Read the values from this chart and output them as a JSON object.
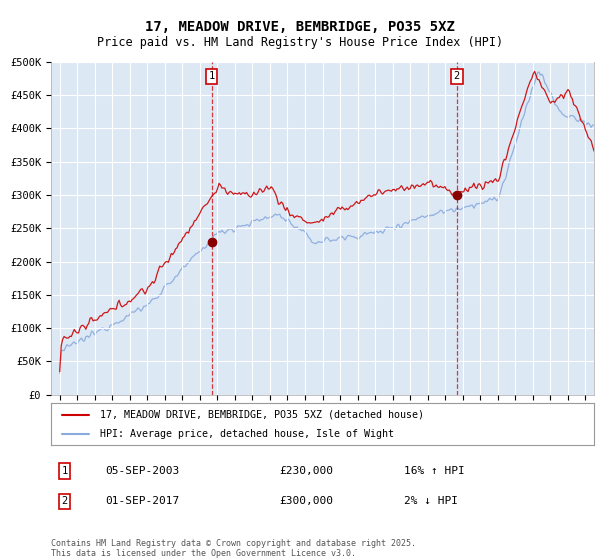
{
  "title": "17, MEADOW DRIVE, BEMBRIDGE, PO35 5XZ",
  "subtitle": "Price paid vs. HM Land Registry's House Price Index (HPI)",
  "ylabel_ticks": [
    "£0",
    "£50K",
    "£100K",
    "£150K",
    "£200K",
    "£250K",
    "£300K",
    "£350K",
    "£400K",
    "£450K",
    "£500K"
  ],
  "ylim": [
    0,
    500000
  ],
  "xlim_start": 1994.5,
  "xlim_end": 2025.5,
  "background_color": "#dde8f5",
  "fig_bg_color": "#ffffff",
  "grid_color": "#ffffff",
  "red_line_color": "#cc0000",
  "blue_line_color": "#88aadd",
  "purchase1_x": 2003.67,
  "purchase1_y": 230000,
  "purchase2_x": 2017.67,
  "purchase2_y": 300000,
  "purchase1_label": "05-SEP-2003",
  "purchase1_price": "£230,000",
  "purchase1_hpi": "16% ↑ HPI",
  "purchase2_label": "01-SEP-2017",
  "purchase2_price": "£300,000",
  "purchase2_hpi": "2% ↓ HPI",
  "legend_line1": "17, MEADOW DRIVE, BEMBRIDGE, PO35 5XZ (detached house)",
  "legend_line2": "HPI: Average price, detached house, Isle of Wight",
  "footer": "Contains HM Land Registry data © Crown copyright and database right 2025.\nThis data is licensed under the Open Government Licence v3.0.",
  "title_fontsize": 10,
  "subtitle_fontsize": 8.5,
  "tick_fontsize": 7.5
}
